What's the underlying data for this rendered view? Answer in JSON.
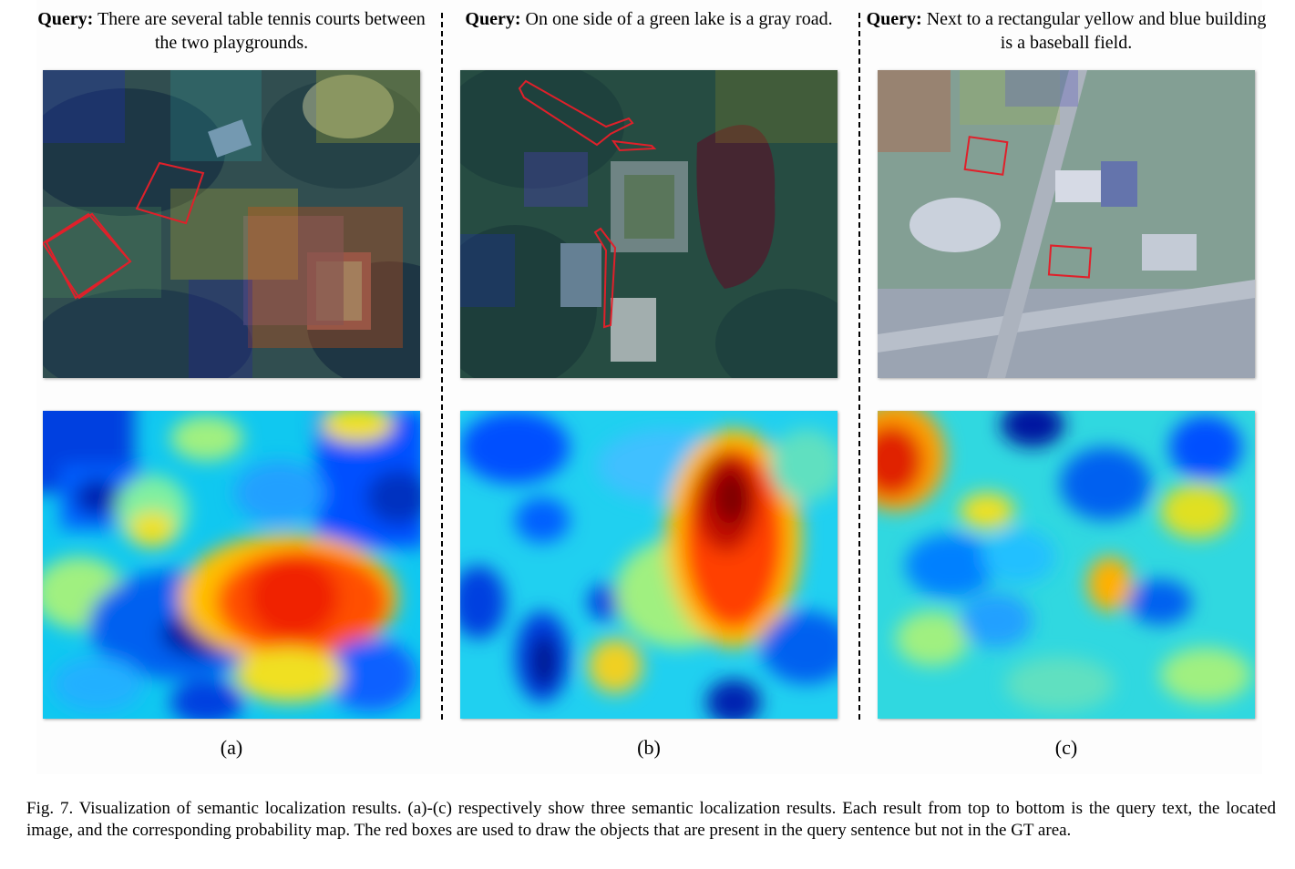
{
  "figure": {
    "panels": [
      {
        "query_prefix": "Query:",
        "query_text": "There are several table tennis courts between the two playgrounds.",
        "label": "(a)"
      },
      {
        "query_prefix": "Query:",
        "query_text": "On one side of a green lake is a gray road.",
        "label": "(b)"
      },
      {
        "query_prefix": "Query:",
        "query_text": "Next to a rectangular yellow and blue building is a baseball field.",
        "label": "(c)"
      }
    ],
    "caption": "Fig. 7.  Visualization of semantic localization results. (a)-(c) respectively show three semantic localization results. Each result from top to bottom is the query text, the located image, and the corresponding probability map. The red boxes are used to draw the objects that are present in the query sentence but not in the GT area."
  },
  "colors": {
    "annotation_box": "#e0202a",
    "colormap": [
      "#00008f",
      "#0050ff",
      "#00d0ff",
      "#80ff80",
      "#ffd000",
      "#ff4000",
      "#800000"
    ]
  }
}
